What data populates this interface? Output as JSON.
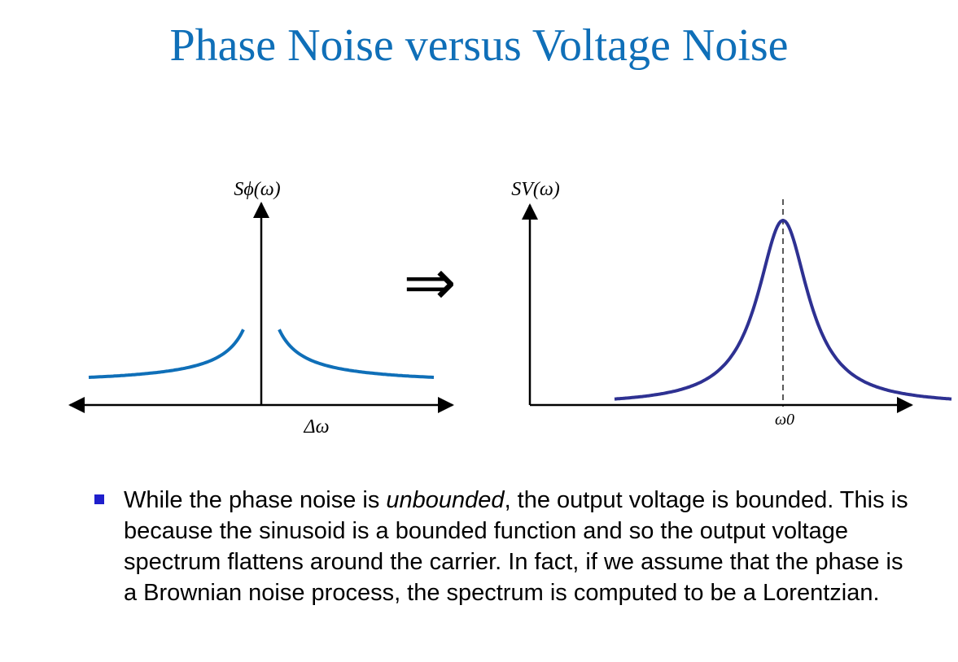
{
  "title": "Phase Noise versus Voltage Noise",
  "left_plot": {
    "ylabel": "Sϕ(ω)",
    "xlabel": "Δω",
    "curve_color": "#0f6fb8"
  },
  "implies_symbol": "⇒",
  "right_plot": {
    "ylabel": "SV(ω)",
    "xlabel_marker": "ω0",
    "curve_color": "#2e3192"
  },
  "bullet": {
    "text_before": "While the phase noise is ",
    "emphasis": "unbounded",
    "text_after": ", the output voltage is bounded. This is because the sinusoid is a bounded function and so the output voltage spectrum flattens around the carrier. In fact, if we assume that the phase is a Brownian noise process, the spectrum is computed to be a Lorentzian."
  },
  "colors": {
    "title": "#0f6fb8",
    "bullet_marker": "#1f1fcc"
  }
}
